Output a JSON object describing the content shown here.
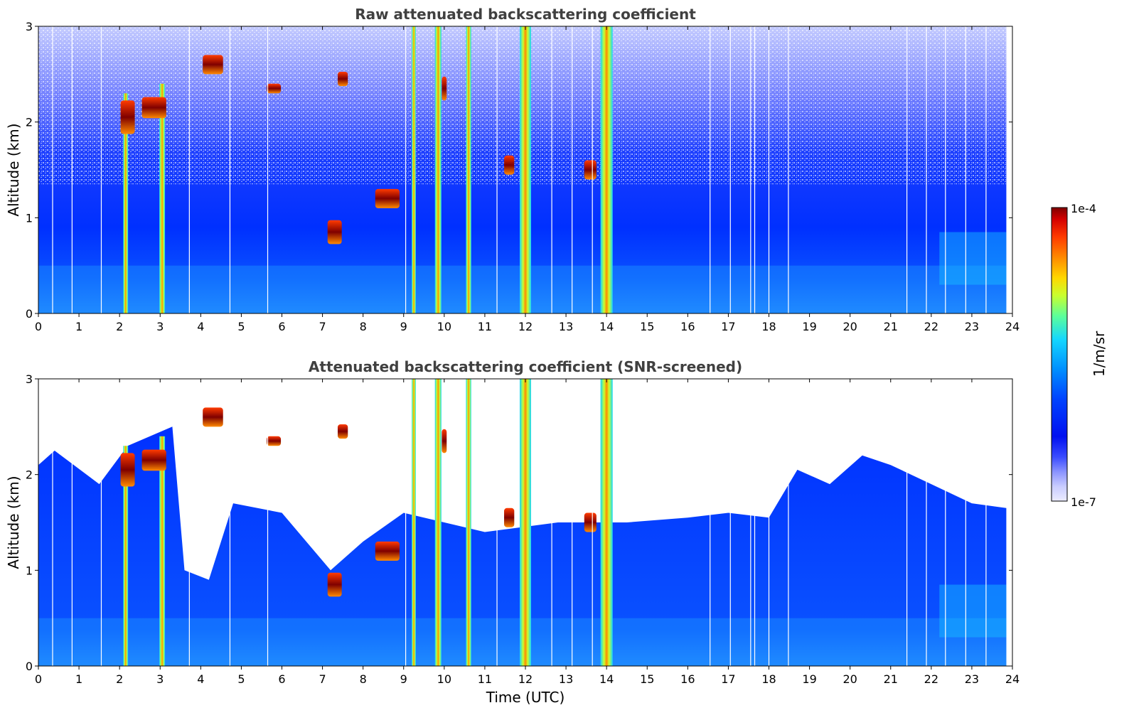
{
  "chart_data": [
    {
      "type": "heatmap",
      "title": "Raw attenuated backscattering coefficient",
      "xlabel": "",
      "ylabel": "Altitude (km)",
      "xlim": [
        0,
        24
      ],
      "ylim": [
        0,
        3
      ],
      "xticks": [
        "0",
        "1",
        "2",
        "3",
        "4",
        "5",
        "6",
        "7",
        "8",
        "9",
        "10",
        "11",
        "12",
        "13",
        "14",
        "15",
        "16",
        "17",
        "18",
        "19",
        "20",
        "21",
        "22",
        "23",
        "24"
      ],
      "yticks": [
        "0",
        "1",
        "2",
        "3"
      ],
      "screened": false
    },
    {
      "type": "heatmap",
      "title": "Attenuated backscattering coefficient (SNR-screened)",
      "xlabel": "Time (UTC)",
      "ylabel": "Altitude (km)",
      "xlim": [
        0,
        24
      ],
      "ylim": [
        0,
        3
      ],
      "xticks": [
        "0",
        "1",
        "2",
        "3",
        "4",
        "5",
        "6",
        "7",
        "8",
        "9",
        "10",
        "11",
        "12",
        "13",
        "14",
        "15",
        "16",
        "17",
        "18",
        "19",
        "20",
        "21",
        "22",
        "23",
        "24"
      ],
      "yticks": [
        "0",
        "1",
        "2",
        "3"
      ],
      "screened": true
    }
  ],
  "colorbar": {
    "label": "1/m/sr",
    "max_label": "1e-4",
    "min_label": "1e-7",
    "colors": [
      "#7f0000",
      "#d40000",
      "#ff3b00",
      "#ff8a00",
      "#ffd800",
      "#c8ff2e",
      "#5bff9b",
      "#14d6ff",
      "#0090ff",
      "#0044ff",
      "#0010f0",
      "#3a4cff",
      "#8a93ff",
      "#c9ccff",
      "#ececff"
    ]
  },
  "features": {
    "gaps_h": [
      0.35,
      0.83,
      1.55,
      3.72,
      4.72,
      5.65,
      9.05,
      11.3,
      12.65,
      13.15,
      13.65,
      16.55,
      17.05,
      17.55,
      17.65,
      18.0,
      18.48,
      21.4,
      21.88,
      22.35,
      22.85,
      23.35
    ],
    "columns": [
      {
        "t": 2.15,
        "w": 0.12,
        "top": 2.3
      },
      {
        "t": 3.05,
        "w": 0.14,
        "top": 2.4
      },
      {
        "t": 9.25,
        "w": 0.1,
        "top": 3.0
      },
      {
        "t": 9.85,
        "w": 0.16,
        "top": 3.0
      },
      {
        "t": 10.6,
        "w": 0.13,
        "top": 3.0
      },
      {
        "t": 12.0,
        "w": 0.28,
        "top": 3.0
      },
      {
        "t": 14.0,
        "w": 0.3,
        "top": 3.0
      }
    ],
    "patches": [
      {
        "t": 2.2,
        "z": 2.05,
        "w": 0.35,
        "h": 0.35
      },
      {
        "t": 2.85,
        "z": 2.15,
        "w": 0.6,
        "h": 0.22
      },
      {
        "t": 4.3,
        "z": 2.6,
        "w": 0.5,
        "h": 0.2
      },
      {
        "t": 5.8,
        "z": 2.35,
        "w": 0.35,
        "h": 0.1
      },
      {
        "t": 7.5,
        "z": 2.45,
        "w": 0.25,
        "h": 0.15
      },
      {
        "t": 7.3,
        "z": 0.85,
        "w": 0.35,
        "h": 0.25
      },
      {
        "t": 8.6,
        "z": 1.2,
        "w": 0.6,
        "h": 0.2
      },
      {
        "t": 10.0,
        "z": 2.35,
        "w": 0.12,
        "h": 0.25
      },
      {
        "t": 11.6,
        "z": 1.55,
        "w": 0.25,
        "h": 0.2
      },
      {
        "t": 13.6,
        "z": 1.5,
        "w": 0.3,
        "h": 0.2
      }
    ]
  }
}
